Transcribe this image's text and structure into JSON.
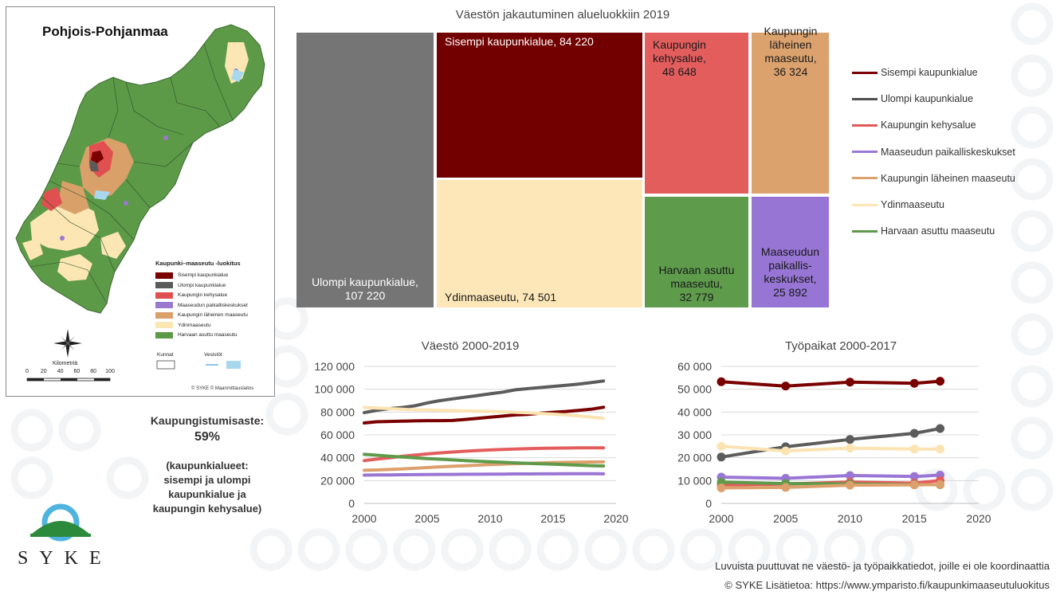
{
  "map": {
    "title": "Pohjois-Pohjanmaa",
    "legend_title": "Kaupunki–maaseutu -luokitus",
    "legend_items": [
      {
        "label": "Sisempi kaupunkialue",
        "color": "#7a0000"
      },
      {
        "label": "Ulompi kaupunkialue",
        "color": "#5a5a5a"
      },
      {
        "label": "Kaupungin kehysalue",
        "color": "#e05050"
      },
      {
        "label": "Maaseudun paikalliskeskukset",
        "color": "#9b78d0"
      },
      {
        "label": "Kaupungin läheinen maaseutu",
        "color": "#d9a06a"
      },
      {
        "label": "Ydinmaaseutu",
        "color": "#fbe6b4"
      },
      {
        "label": "Harvaan asuttu maaseutu",
        "color": "#5c9a48"
      }
    ],
    "kunnat_label": "Kunnat",
    "vesistot_label": "Vesistöt",
    "scale_title": "Kilometriä",
    "scale_ticks": [
      "0",
      "20",
      "40",
      "60",
      "80",
      "100"
    ],
    "credit": "© SYKE © Maanmittauslaitos"
  },
  "urbanization": {
    "label": "Kaupungistumisaste:",
    "value": "59%",
    "note_lines": [
      "(kaupunkialueet:",
      "sisempi ja ulompi",
      "kaupunkialue ja",
      "kaupungin kehysalue)"
    ]
  },
  "logo": {
    "text": "SYKE"
  },
  "footnote": "Luvuista puuttuvat ne väestö- ja työpaikkatiedot, joille ei ole koordinaattia",
  "copyright": "© SYKE Lisätietoa: https://www.ymparisto.fi/kaupunkimaaseutuluokitus",
  "legend": [
    {
      "label": "Sisempi kaupunkialue",
      "color": "#7a0000"
    },
    {
      "label": "Ulompi kaupunkialue",
      "color": "#505050"
    },
    {
      "label": "Kaupungin kehysalue",
      "color": "#e05a5a"
    },
    {
      "label": "Maaseudun paikalliskeskukset",
      "color": "#9a76d4"
    },
    {
      "label": "Kaupungin läheinen maaseutu",
      "color": "#dca06c"
    },
    {
      "label": "Ydinmaaseutu",
      "color": "#fde6b3"
    },
    {
      "label": "Harvaan asuttu maaseutu",
      "color": "#5e9a4a"
    }
  ],
  "chart_data": [
    {
      "type": "treemap",
      "title": "Väestön jakautuminen alueluokkiin 2019",
      "items": [
        {
          "lines": [
            "Ulompi kaupunkialue,",
            "107 220"
          ],
          "value": 107220,
          "color": "#757575"
        },
        {
          "lines": [
            "Sisempi kaupunkialue, 84 220"
          ],
          "value": 84220,
          "color": "#720000"
        },
        {
          "lines": [
            "Ydinmaaseutu, 74 501"
          ],
          "value": 74501,
          "color": "#fde7b8"
        },
        {
          "lines": [
            "Kaupungin",
            "kehysalue,",
            "48 648"
          ],
          "value": 48648,
          "color": "#e35d5d"
        },
        {
          "lines": [
            "Kaupungin",
            "läheinen",
            "maaseutu,",
            "36 324"
          ],
          "value": 36324,
          "color": "#dba26e"
        },
        {
          "lines": [
            "Harvaan asuttu",
            "maaseutu,",
            "32 779"
          ],
          "value": 32779,
          "color": "#5e9c4c"
        },
        {
          "lines": [
            "Maaseudun",
            "paikallis-",
            "keskukset,",
            "25 892"
          ],
          "value": 25892,
          "color": "#9775d4"
        }
      ]
    },
    {
      "type": "line",
      "title": "Väestö 2000-2019",
      "x": [
        2000,
        2001,
        2002,
        2003,
        2004,
        2005,
        2006,
        2007,
        2008,
        2009,
        2010,
        2011,
        2012,
        2013,
        2014,
        2015,
        2016,
        2017,
        2018,
        2019
      ],
      "xlim": [
        2000,
        2020
      ],
      "xticks": [
        "2000",
        "2005",
        "2010",
        "2015",
        "2020"
      ],
      "ylim": [
        0,
        120000
      ],
      "yticks": [
        "0",
        "20 000",
        "40 000",
        "60 000",
        "80 000",
        "100 000",
        "120 000"
      ],
      "series": [
        {
          "name": "Ulompi kaupunkialue",
          "color": "#5c5c5c",
          "values": [
            79500,
            81500,
            83000,
            84000,
            85500,
            88000,
            90000,
            91500,
            93000,
            94500,
            96000,
            97500,
            99500,
            100500,
            101500,
            102500,
            103500,
            104500,
            105800,
            107220
          ]
        },
        {
          "name": "Sisempi kaupunkialue",
          "color": "#7a0000",
          "values": [
            70500,
            71500,
            71800,
            72000,
            72300,
            72500,
            72500,
            72600,
            73500,
            74500,
            75500,
            76500,
            77500,
            78000,
            79000,
            79800,
            80500,
            81500,
            82500,
            84220
          ]
        },
        {
          "name": "Ydinmaaseutu",
          "color": "#fbe3b2",
          "values": [
            84000,
            83500,
            83000,
            82500,
            82000,
            81800,
            81500,
            81300,
            81000,
            80800,
            80500,
            80200,
            79800,
            79300,
            78800,
            78200,
            77500,
            76700,
            75600,
            74501
          ]
        },
        {
          "name": "Kaupungin kehysalue",
          "color": "#e35d5d",
          "values": [
            37500,
            38800,
            40000,
            41200,
            42300,
            43300,
            44200,
            45000,
            45700,
            46300,
            46800,
            47200,
            47600,
            47900,
            48200,
            48400,
            48500,
            48600,
            48650,
            48648
          ]
        },
        {
          "name": "Kaupungin läheinen maaseutu",
          "color": "#dca06c",
          "values": [
            29000,
            29300,
            29700,
            30200,
            30800,
            31400,
            32000,
            32500,
            33000,
            33500,
            34000,
            34400,
            34800,
            35100,
            35400,
            35700,
            35900,
            36100,
            36250,
            36324
          ]
        },
        {
          "name": "Harvaan asuttu maaseutu",
          "color": "#5e9a4a",
          "values": [
            43000,
            42200,
            41400,
            40700,
            40000,
            39300,
            38700,
            38100,
            37500,
            37000,
            36500,
            36000,
            35500,
            35100,
            34700,
            34300,
            33900,
            33500,
            33100,
            32779
          ]
        },
        {
          "name": "Maaseudun paikalliskeskukset",
          "color": "#9a76d4",
          "values": [
            24800,
            24900,
            25000,
            25100,
            25200,
            25300,
            25400,
            25400,
            25500,
            25500,
            25600,
            25700,
            25800,
            25800,
            25900,
            25900,
            26000,
            26000,
            25950,
            25892
          ]
        }
      ]
    },
    {
      "type": "line",
      "title": "Työpaikat 2000-2017",
      "x": [
        2000,
        2005,
        2010,
        2015,
        2017
      ],
      "xlim": [
        2000,
        2020
      ],
      "xticks": [
        "2000",
        "2005",
        "2010",
        "2015",
        "2020"
      ],
      "ylim": [
        0,
        60000
      ],
      "yticks": [
        "0",
        "10 000",
        "20 000",
        "30 000",
        "40 000",
        "50 000",
        "60 000"
      ],
      "series": [
        {
          "name": "Sisempi kaupunkialue",
          "color": "#7a0000",
          "values": [
            53300,
            51400,
            53100,
            52600,
            53500
          ]
        },
        {
          "name": "Ulompi kaupunkialue",
          "color": "#5c5c5c",
          "values": [
            20300,
            24800,
            28000,
            30700,
            32800
          ]
        },
        {
          "name": "Ydinmaaseutu",
          "color": "#fbe3b2",
          "values": [
            25000,
            23000,
            24200,
            23800,
            23800
          ]
        },
        {
          "name": "Maaseudun paikalliskeskukset",
          "color": "#9a76d4",
          "values": [
            11500,
            11000,
            12200,
            11800,
            12400
          ]
        },
        {
          "name": "Kaupungin kehysalue",
          "color": "#e35d5d",
          "values": [
            8000,
            8500,
            9300,
            8900,
            10000
          ]
        },
        {
          "name": "Harvaan asuttu maaseutu",
          "color": "#5e9a4a",
          "values": [
            9300,
            8700,
            8500,
            8200,
            8200
          ]
        },
        {
          "name": "Kaupungin läheinen maaseutu",
          "color": "#dca06c",
          "values": [
            6800,
            7000,
            8000,
            8100,
            8300
          ]
        }
      ]
    }
  ]
}
